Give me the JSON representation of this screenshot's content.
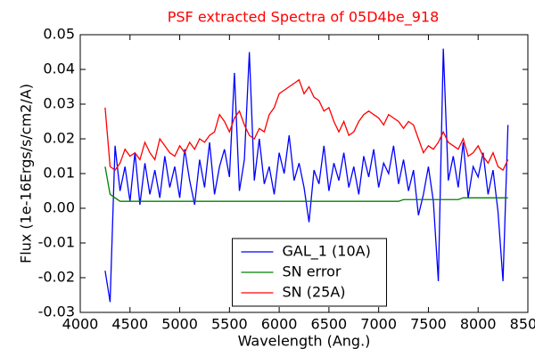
{
  "chart_data": {
    "type": "line",
    "title": "PSF extracted Spectra of 05D4be_918",
    "title_color": "#ff0000",
    "xlabel": "Wavelength (Ang.)",
    "ylabel": "Flux (1e-16Ergs/s/cm2/A)",
    "x": [
      4250,
      4300,
      4350,
      4400,
      4450,
      4500,
      4550,
      4600,
      4650,
      4700,
      4750,
      4800,
      4850,
      4900,
      4950,
      5000,
      5050,
      5100,
      5150,
      5200,
      5250,
      5300,
      5350,
      5400,
      5450,
      5500,
      5550,
      5600,
      5650,
      5700,
      5750,
      5800,
      5850,
      5900,
      5950,
      6000,
      6050,
      6100,
      6150,
      6200,
      6250,
      6300,
      6350,
      6400,
      6450,
      6500,
      6550,
      6600,
      6650,
      6700,
      6750,
      6800,
      6850,
      6900,
      6950,
      7000,
      7050,
      7100,
      7150,
      7200,
      7250,
      7300,
      7350,
      7400,
      7450,
      7500,
      7550,
      7600,
      7650,
      7700,
      7750,
      7800,
      7850,
      7900,
      7950,
      8000,
      8050,
      8100,
      8150,
      8200,
      8250,
      8300
    ],
    "series": [
      {
        "name": "GAL_1 (10A)",
        "color": "#0000ff",
        "values": [
          -0.018,
          -0.027,
          0.018,
          0.005,
          0.012,
          0.002,
          0.016,
          0.001,
          0.013,
          0.004,
          0.011,
          0.003,
          0.015,
          0.006,
          0.012,
          0.003,
          0.017,
          0.008,
          0.001,
          0.014,
          0.006,
          0.019,
          0.004,
          0.012,
          0.017,
          0.009,
          0.039,
          0.005,
          0.014,
          0.045,
          0.008,
          0.02,
          0.007,
          0.012,
          0.004,
          0.016,
          0.01,
          0.021,
          0.008,
          0.013,
          0.006,
          -0.004,
          0.011,
          0.007,
          0.018,
          0.005,
          0.013,
          0.008,
          0.016,
          0.006,
          0.012,
          0.004,
          0.015,
          0.009,
          0.017,
          0.006,
          0.013,
          0.01,
          0.018,
          0.007,
          0.014,
          0.005,
          0.011,
          -0.002,
          0.004,
          0.012,
          0.002,
          -0.021,
          0.046,
          0.008,
          0.015,
          0.006,
          0.019,
          0.003,
          0.012,
          0.009,
          0.016,
          0.004,
          0.011,
          -0.001,
          -0.021,
          0.024
        ]
      },
      {
        "name": "SN error",
        "color": "#008000",
        "values": [
          0.012,
          0.004,
          0.003,
          0.002,
          0.002,
          0.002,
          0.002,
          0.002,
          0.002,
          0.002,
          0.002,
          0.002,
          0.002,
          0.002,
          0.002,
          0.002,
          0.002,
          0.002,
          0.002,
          0.002,
          0.002,
          0.002,
          0.002,
          0.002,
          0.002,
          0.002,
          0.002,
          0.002,
          0.002,
          0.002,
          0.002,
          0.002,
          0.002,
          0.002,
          0.002,
          0.002,
          0.002,
          0.002,
          0.002,
          0.002,
          0.002,
          0.002,
          0.002,
          0.002,
          0.002,
          0.002,
          0.002,
          0.002,
          0.002,
          0.002,
          0.002,
          0.002,
          0.002,
          0.002,
          0.002,
          0.002,
          0.002,
          0.002,
          0.002,
          0.002,
          0.0025,
          0.0025,
          0.0025,
          0.0025,
          0.0025,
          0.0025,
          0.0025,
          0.0025,
          0.0025,
          0.0025,
          0.0025,
          0.0025,
          0.003,
          0.003,
          0.003,
          0.003,
          0.003,
          0.003,
          0.003,
          0.003,
          0.003,
          0.003
        ]
      },
      {
        "name": "SN (25A)",
        "color": "#ff0000",
        "values": [
          0.029,
          0.012,
          0.011,
          0.013,
          0.017,
          0.015,
          0.016,
          0.014,
          0.019,
          0.016,
          0.014,
          0.02,
          0.018,
          0.016,
          0.015,
          0.018,
          0.016,
          0.019,
          0.017,
          0.02,
          0.019,
          0.021,
          0.022,
          0.027,
          0.025,
          0.022,
          0.026,
          0.028,
          0.024,
          0.021,
          0.02,
          0.023,
          0.022,
          0.027,
          0.029,
          0.033,
          0.034,
          0.035,
          0.036,
          0.037,
          0.033,
          0.035,
          0.032,
          0.031,
          0.028,
          0.029,
          0.025,
          0.022,
          0.025,
          0.021,
          0.022,
          0.025,
          0.027,
          0.028,
          0.027,
          0.026,
          0.024,
          0.027,
          0.026,
          0.025,
          0.023,
          0.025,
          0.024,
          0.02,
          0.016,
          0.018,
          0.017,
          0.019,
          0.022,
          0.019,
          0.018,
          0.017,
          0.02,
          0.015,
          0.016,
          0.018,
          0.015,
          0.013,
          0.016,
          0.012,
          0.011,
          0.014
        ]
      }
    ],
    "xlim": [
      4000,
      8500
    ],
    "xticks": [
      4000,
      4500,
      5000,
      5500,
      6000,
      6500,
      7000,
      7500,
      8000,
      8500
    ],
    "ylim": [
      -0.03,
      0.05
    ],
    "yticks": [
      -0.03,
      -0.02,
      -0.01,
      {
        "value": 0,
        "label": "0.00"
      },
      0.01,
      0.02,
      0.03,
      0.04,
      0.05
    ],
    "legend": "lower center"
  }
}
